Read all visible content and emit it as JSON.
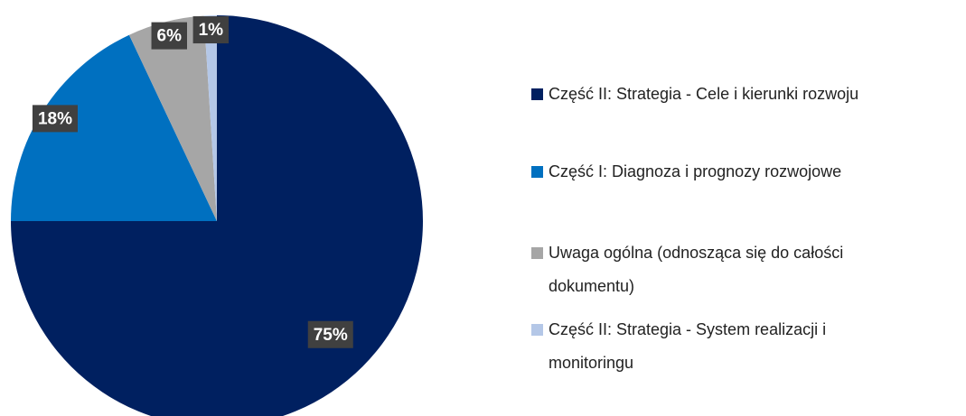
{
  "chart_data": {
    "type": "pie",
    "categories": [
      "Część II: Strategia - Cele i kierunki rozwoju",
      "Część I: Diagnoza i prognozy rozwojowe",
      "Uwaga ogólna (odnosząca się do całości dokumentu)",
      "Część II: Strategia - System realizacji i monitoringu"
    ],
    "values": [
      75,
      18,
      6,
      1
    ],
    "value_labels": [
      "75%",
      "18%",
      "6%",
      "1%"
    ],
    "colors": [
      "#002060",
      "#0070c0",
      "#a6a6a6",
      "#b4c7e7"
    ],
    "legend": "right"
  }
}
